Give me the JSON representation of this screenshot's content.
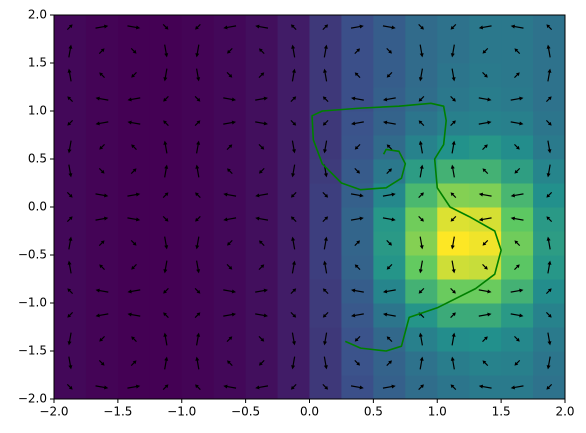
{
  "chart_data": {
    "type": "heatmap",
    "colormap": "viridis",
    "x": [
      -1.875,
      -1.625,
      -1.375,
      -1.125,
      -0.875,
      -0.625,
      -0.375,
      -0.125,
      0.125,
      0.375,
      0.625,
      0.875,
      1.125,
      1.375,
      1.625,
      1.875
    ],
    "y": [
      -1.875,
      -1.625,
      -1.375,
      -1.125,
      -0.875,
      -0.625,
      -0.375,
      -0.125,
      0.125,
      0.375,
      0.625,
      0.875,
      1.125,
      1.375,
      1.625,
      1.875
    ],
    "z": [
      [
        0.06,
        0.05,
        0.04,
        0.04,
        0.05,
        0.06,
        0.08,
        0.12,
        0.2,
        0.27,
        0.33,
        0.38,
        0.41,
        0.43,
        0.43,
        0.4
      ],
      [
        0.06,
        0.05,
        0.04,
        0.04,
        0.05,
        0.06,
        0.08,
        0.12,
        0.2,
        0.28,
        0.34,
        0.4,
        0.44,
        0.46,
        0.45,
        0.41
      ],
      [
        0.06,
        0.05,
        0.04,
        0.04,
        0.05,
        0.06,
        0.08,
        0.12,
        0.2,
        0.28,
        0.36,
        0.45,
        0.5,
        0.51,
        0.48,
        0.43
      ],
      [
        0.06,
        0.05,
        0.04,
        0.04,
        0.05,
        0.06,
        0.08,
        0.12,
        0.21,
        0.3,
        0.41,
        0.53,
        0.62,
        0.62,
        0.55,
        0.46
      ],
      [
        0.06,
        0.05,
        0.04,
        0.04,
        0.05,
        0.06,
        0.08,
        0.12,
        0.21,
        0.32,
        0.47,
        0.65,
        0.77,
        0.77,
        0.65,
        0.5
      ],
      [
        0.06,
        0.05,
        0.04,
        0.04,
        0.05,
        0.06,
        0.08,
        0.12,
        0.22,
        0.34,
        0.53,
        0.76,
        0.92,
        0.91,
        0.74,
        0.54
      ],
      [
        0.06,
        0.05,
        0.04,
        0.04,
        0.05,
        0.06,
        0.08,
        0.12,
        0.22,
        0.35,
        0.55,
        0.81,
        0.99,
        0.97,
        0.78,
        0.56
      ],
      [
        0.06,
        0.05,
        0.04,
        0.04,
        0.05,
        0.06,
        0.08,
        0.12,
        0.22,
        0.35,
        0.54,
        0.78,
        0.94,
        0.93,
        0.75,
        0.55
      ],
      [
        0.06,
        0.05,
        0.04,
        0.04,
        0.05,
        0.06,
        0.08,
        0.12,
        0.22,
        0.33,
        0.48,
        0.68,
        0.81,
        0.8,
        0.67,
        0.51
      ],
      [
        0.06,
        0.05,
        0.04,
        0.04,
        0.05,
        0.06,
        0.08,
        0.12,
        0.21,
        0.31,
        0.42,
        0.56,
        0.65,
        0.65,
        0.57,
        0.47
      ],
      [
        0.06,
        0.05,
        0.04,
        0.04,
        0.05,
        0.06,
        0.08,
        0.12,
        0.2,
        0.29,
        0.37,
        0.46,
        0.52,
        0.54,
        0.5,
        0.43
      ],
      [
        0.06,
        0.05,
        0.04,
        0.04,
        0.05,
        0.06,
        0.08,
        0.12,
        0.2,
        0.28,
        0.34,
        0.41,
        0.45,
        0.46,
        0.45,
        0.41
      ],
      [
        0.06,
        0.05,
        0.04,
        0.04,
        0.05,
        0.06,
        0.08,
        0.12,
        0.2,
        0.27,
        0.33,
        0.38,
        0.42,
        0.44,
        0.43,
        0.4
      ],
      [
        0.06,
        0.05,
        0.04,
        0.04,
        0.05,
        0.06,
        0.08,
        0.12,
        0.2,
        0.27,
        0.32,
        0.37,
        0.41,
        0.43,
        0.42,
        0.4
      ],
      [
        0.06,
        0.05,
        0.04,
        0.04,
        0.05,
        0.06,
        0.08,
        0.12,
        0.2,
        0.27,
        0.32,
        0.37,
        0.4,
        0.42,
        0.42,
        0.4
      ],
      [
        0.06,
        0.05,
        0.04,
        0.04,
        0.05,
        0.06,
        0.08,
        0.12,
        0.2,
        0.27,
        0.32,
        0.37,
        0.4,
        0.42,
        0.42,
        0.4
      ]
    ],
    "quiver": {
      "color": "#000000",
      "u": [
        [
          0.35,
          0.85,
          0.85,
          0.35,
          -0.35,
          -0.85,
          -0.85,
          -0.35,
          0.35,
          0.85,
          0.85,
          0.35,
          -0.35,
          -0.85,
          -0.85,
          -0.35
        ],
        [
          0.15,
          0.35,
          0.35,
          0.15,
          -0.15,
          -0.35,
          -0.35,
          -0.15,
          0.15,
          0.35,
          0.35,
          0.15,
          -0.15,
          -0.35,
          -0.35,
          -0.15
        ],
        [
          -0.15,
          -0.35,
          -0.35,
          -0.15,
          0.15,
          0.35,
          0.35,
          0.15,
          -0.15,
          -0.35,
          -0.35,
          -0.15,
          0.15,
          0.35,
          0.35,
          0.15
        ],
        [
          -0.35,
          -0.85,
          -0.85,
          -0.35,
          0.35,
          0.85,
          0.85,
          0.35,
          -0.35,
          -0.85,
          -0.85,
          -0.35,
          0.35,
          0.85,
          0.85,
          0.35
        ],
        [
          -0.35,
          -0.85,
          -0.85,
          -0.35,
          0.35,
          0.85,
          0.85,
          0.35,
          -0.35,
          -0.85,
          -0.85,
          -0.35,
          0.35,
          0.85,
          0.85,
          0.35
        ],
        [
          -0.15,
          -0.35,
          -0.35,
          -0.15,
          0.15,
          0.35,
          0.35,
          0.15,
          -0.15,
          -0.35,
          -0.35,
          -0.15,
          0.15,
          0.35,
          0.35,
          0.15
        ],
        [
          0.15,
          0.35,
          0.35,
          0.15,
          -0.15,
          -0.35,
          -0.35,
          -0.15,
          0.15,
          0.35,
          0.35,
          0.15,
          -0.15,
          -0.35,
          -0.35,
          -0.15
        ],
        [
          0.35,
          0.85,
          0.85,
          0.35,
          -0.35,
          -0.85,
          -0.85,
          -0.35,
          0.35,
          0.85,
          0.85,
          0.35,
          -0.35,
          -0.85,
          -0.85,
          -0.35
        ],
        [
          0.35,
          0.85,
          0.85,
          0.35,
          -0.35,
          -0.85,
          -0.85,
          -0.35,
          0.35,
          0.85,
          0.85,
          0.35,
          -0.35,
          -0.85,
          -0.85,
          -0.35
        ],
        [
          0.15,
          0.35,
          0.35,
          0.15,
          -0.15,
          -0.35,
          -0.35,
          -0.15,
          0.15,
          0.35,
          0.35,
          0.15,
          -0.15,
          -0.35,
          -0.35,
          -0.15
        ],
        [
          -0.15,
          -0.35,
          -0.35,
          -0.15,
          0.15,
          0.35,
          0.35,
          0.15,
          -0.15,
          -0.35,
          -0.35,
          -0.15,
          0.15,
          0.35,
          0.35,
          0.15
        ],
        [
          -0.35,
          -0.85,
          -0.85,
          -0.35,
          0.35,
          0.85,
          0.85,
          0.35,
          -0.35,
          -0.85,
          -0.85,
          -0.35,
          0.35,
          0.85,
          0.85,
          0.35
        ],
        [
          -0.35,
          -0.85,
          -0.85,
          -0.35,
          0.35,
          0.85,
          0.85,
          0.35,
          -0.35,
          -0.85,
          -0.85,
          -0.35,
          0.35,
          0.85,
          0.85,
          0.35
        ],
        [
          -0.15,
          -0.35,
          -0.35,
          -0.15,
          0.15,
          0.35,
          0.35,
          0.15,
          -0.15,
          -0.35,
          -0.35,
          -0.15,
          0.15,
          0.35,
          0.35,
          0.15
        ],
        [
          0.15,
          0.35,
          0.35,
          0.15,
          -0.15,
          -0.35,
          -0.35,
          -0.15,
          0.15,
          0.35,
          0.35,
          0.15,
          -0.15,
          -0.35,
          -0.35,
          -0.15
        ],
        [
          0.35,
          0.85,
          0.85,
          0.35,
          -0.35,
          -0.85,
          -0.85,
          -0.35,
          0.35,
          0.85,
          0.85,
          0.35,
          -0.35,
          -0.85,
          -0.85,
          -0.35
        ]
      ],
      "v": [
        [
          -0.35,
          -0.15,
          0.15,
          0.35,
          0.35,
          0.15,
          -0.15,
          -0.35,
          -0.35,
          -0.15,
          0.15,
          0.35,
          0.35,
          0.15,
          -0.15,
          -0.35
        ],
        [
          -0.85,
          -0.35,
          0.35,
          0.85,
          0.85,
          0.35,
          -0.35,
          -0.85,
          -0.85,
          -0.35,
          0.35,
          0.85,
          0.85,
          0.35,
          -0.35,
          -0.85
        ],
        [
          -0.85,
          -0.35,
          0.35,
          0.85,
          0.85,
          0.35,
          -0.35,
          -0.85,
          -0.85,
          -0.35,
          0.35,
          0.85,
          0.85,
          0.35,
          -0.35,
          -0.85
        ],
        [
          -0.35,
          -0.15,
          0.15,
          0.35,
          0.35,
          0.15,
          -0.15,
          -0.35,
          -0.35,
          -0.15,
          0.15,
          0.35,
          0.35,
          0.15,
          -0.15,
          -0.35
        ],
        [
          0.35,
          0.15,
          -0.15,
          -0.35,
          -0.35,
          -0.15,
          0.15,
          0.35,
          0.35,
          0.15,
          -0.15,
          -0.35,
          -0.35,
          -0.15,
          0.15,
          0.35
        ],
        [
          0.85,
          0.35,
          -0.35,
          -0.85,
          -0.85,
          -0.35,
          0.35,
          0.85,
          0.85,
          0.35,
          -0.35,
          -0.85,
          -0.85,
          -0.35,
          0.35,
          0.85
        ],
        [
          0.85,
          0.35,
          -0.35,
          -0.85,
          -0.85,
          -0.35,
          0.35,
          0.85,
          0.85,
          0.35,
          -0.35,
          -0.85,
          -0.85,
          -0.35,
          0.35,
          0.85
        ],
        [
          0.35,
          0.15,
          -0.15,
          -0.35,
          -0.35,
          -0.15,
          0.15,
          0.35,
          0.35,
          0.15,
          -0.15,
          -0.35,
          -0.35,
          -0.15,
          0.15,
          0.35
        ],
        [
          -0.35,
          -0.15,
          0.15,
          0.35,
          0.35,
          0.15,
          -0.15,
          -0.35,
          -0.35,
          -0.15,
          0.15,
          0.35,
          0.35,
          0.15,
          -0.15,
          -0.35
        ],
        [
          -0.85,
          -0.35,
          0.35,
          0.85,
          0.85,
          0.35,
          -0.35,
          -0.85,
          -0.85,
          -0.35,
          0.35,
          0.85,
          0.85,
          0.35,
          -0.35,
          -0.85
        ],
        [
          -0.85,
          -0.35,
          0.35,
          0.85,
          0.85,
          0.35,
          -0.35,
          -0.85,
          -0.85,
          -0.35,
          0.35,
          0.85,
          0.85,
          0.35,
          -0.35,
          -0.85
        ],
        [
          -0.35,
          -0.15,
          0.15,
          0.35,
          0.35,
          0.15,
          -0.15,
          -0.35,
          -0.35,
          -0.15,
          0.15,
          0.35,
          0.35,
          0.15,
          -0.15,
          -0.35
        ],
        [
          0.35,
          0.15,
          -0.15,
          -0.35,
          -0.35,
          -0.15,
          0.15,
          0.35,
          0.35,
          0.15,
          -0.15,
          -0.35,
          -0.35,
          -0.15,
          0.15,
          0.35
        ],
        [
          0.85,
          0.35,
          -0.35,
          -0.85,
          -0.85,
          -0.35,
          0.35,
          0.85,
          0.85,
          0.35,
          -0.35,
          -0.85,
          -0.85,
          -0.35,
          0.35,
          0.85
        ],
        [
          0.85,
          0.35,
          -0.35,
          -0.85,
          -0.85,
          -0.35,
          0.35,
          0.85,
          0.85,
          0.35,
          -0.35,
          -0.85,
          -0.85,
          -0.35,
          0.35,
          0.85
        ],
        [
          0.35,
          0.15,
          -0.15,
          -0.35,
          -0.35,
          -0.15,
          0.15,
          0.35,
          0.35,
          0.15,
          -0.15,
          -0.35,
          -0.35,
          -0.15,
          0.15,
          0.35
        ]
      ]
    },
    "line": {
      "color": "#008000",
      "x": [
        0.28,
        0.4,
        0.6,
        0.72,
        0.75,
        0.78,
        1.0,
        1.3,
        1.45,
        1.5,
        1.45,
        1.25,
        1.1,
        1.0,
        0.98,
        1.05,
        1.07,
        1.05,
        0.95,
        0.7,
        0.4,
        0.1,
        0.02,
        0.03,
        0.1,
        0.25,
        0.4,
        0.6,
        0.72,
        0.75,
        0.7,
        0.6,
        0.58
      ],
      "y": [
        -1.4,
        -1.47,
        -1.5,
        -1.45,
        -1.3,
        -1.15,
        -1.05,
        -0.85,
        -0.7,
        -0.45,
        -0.25,
        -0.1,
        0.0,
        0.2,
        0.5,
        0.65,
        0.9,
        1.05,
        1.08,
        1.05,
        1.03,
        1.0,
        0.95,
        0.7,
        0.45,
        0.25,
        0.18,
        0.2,
        0.3,
        0.45,
        0.58,
        0.6,
        0.55
      ]
    },
    "xlim": [
      -2,
      2
    ],
    "ylim": [
      -2,
      2
    ],
    "xticks": [
      {
        "value": -2,
        "label": "−2.0"
      },
      {
        "value": -1.5,
        "label": "−1.5"
      },
      {
        "value": -1,
        "label": "−1.0"
      },
      {
        "value": -0.5,
        "label": "−0.5"
      },
      {
        "value": 0,
        "label": "0.0"
      },
      0.5,
      {
        "value": 1,
        "label": "1.0"
      },
      1.5,
      {
        "value": 2,
        "label": "2.0"
      }
    ],
    "yticks": [
      {
        "value": -2,
        "label": "−2.0"
      },
      {
        "value": -1.5,
        "label": "−1.5"
      },
      {
        "value": -1,
        "label": "−1.0"
      },
      {
        "value": -0.5,
        "label": "−0.5"
      },
      {
        "value": 0,
        "label": "0.0"
      },
      0.5,
      {
        "value": 1,
        "label": "1.0"
      },
      1.5,
      {
        "value": 2,
        "label": "2.0"
      }
    ]
  }
}
